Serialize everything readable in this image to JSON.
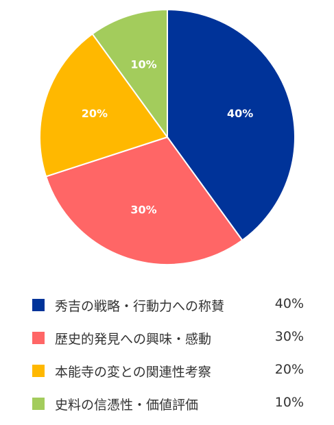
{
  "chart_data": {
    "type": "pie",
    "categories": [
      "秀吉の戦略・行動力への称賛",
      "歴史的発見への興味・感動",
      "本能寺の変との関連性考察",
      "史料の信憑性・価値評価"
    ],
    "values": [
      40,
      30,
      20,
      10
    ],
    "slice_labels": [
      "40%",
      "30%",
      "20%",
      "10%"
    ],
    "legend_values": [
      "40%",
      "30%",
      "20%",
      "10%"
    ],
    "colors": [
      "#003399",
      "#FF6666",
      "#FFB800",
      "#A3CC5C"
    ],
    "legend_placement": "bottom"
  }
}
